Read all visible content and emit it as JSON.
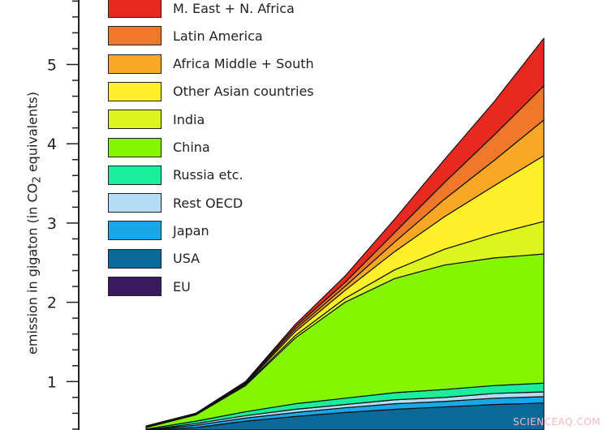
{
  "chart_data": {
    "type": "area",
    "stacked": true,
    "title": "",
    "xlabel": "",
    "ylabel_prefix": "emission in gigaton (in CO",
    "ylabel_sub": "2",
    "ylabel_suffix": " equivalents)",
    "yticks": [
      1,
      2,
      3,
      4,
      5
    ],
    "ylim": [
      -0.4,
      5.8
    ],
    "x": [
      0,
      1,
      2,
      3,
      4,
      5,
      6,
      7,
      8
    ],
    "legend_placement": "top-left",
    "series": [
      {
        "name": "EU",
        "color": "#3a1a5e",
        "values": [
          0.3,
          0.3,
          0.3,
          0.3,
          0.3,
          0.3,
          0.3,
          0.3,
          0.3
        ]
      },
      {
        "name": "USA",
        "color": "#096a9a",
        "values": [
          0.06,
          0.12,
          0.2,
          0.26,
          0.31,
          0.35,
          0.38,
          0.41,
          0.43
        ]
      },
      {
        "name": "Japan",
        "color": "#1aa7e8",
        "values": [
          0.02,
          0.03,
          0.04,
          0.05,
          0.06,
          0.07,
          0.07,
          0.08,
          0.08
        ]
      },
      {
        "name": "Rest OECD",
        "color": "#b5dcf5",
        "values": [
          0.01,
          0.02,
          0.03,
          0.04,
          0.04,
          0.05,
          0.05,
          0.06,
          0.06
        ]
      },
      {
        "name": "Russia etc.",
        "color": "#19ef9a",
        "values": [
          0.01,
          0.03,
          0.05,
          0.07,
          0.08,
          0.09,
          0.1,
          0.1,
          0.11
        ]
      },
      {
        "name": "China",
        "color": "#86f500",
        "values": [
          0.02,
          0.08,
          0.33,
          0.83,
          1.21,
          1.44,
          1.57,
          1.61,
          1.63
        ]
      },
      {
        "name": "India",
        "color": "#ddf51f",
        "values": [
          0,
          0,
          0.01,
          0.03,
          0.05,
          0.11,
          0.2,
          0.3,
          0.41
        ]
      },
      {
        "name": "Other Asian countries",
        "color": "#fff02a",
        "values": [
          0.01,
          0.01,
          0.01,
          0.05,
          0.1,
          0.23,
          0.41,
          0.61,
          0.83
        ]
      },
      {
        "name": "Africa Middle + South",
        "color": "#f9a825",
        "values": [
          0,
          0,
          0.01,
          0.03,
          0.05,
          0.12,
          0.22,
          0.32,
          0.45
        ]
      },
      {
        "name": "Latin America",
        "color": "#f07828",
        "values": [
          0,
          0,
          0.01,
          0.03,
          0.05,
          0.12,
          0.21,
          0.32,
          0.43
        ]
      },
      {
        "name": "M. East + N. Africa",
        "color": "#e8291f",
        "values": [
          0.01,
          0.01,
          0.01,
          0.03,
          0.08,
          0.17,
          0.29,
          0.42,
          0.6
        ]
      }
    ]
  },
  "watermark": "SCIENCEAQ.COM"
}
